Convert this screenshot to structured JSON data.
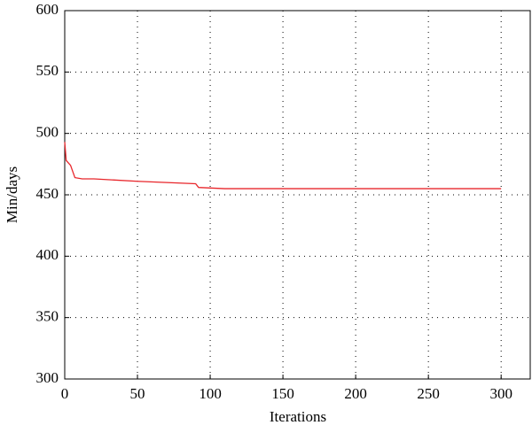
{
  "chart_data": {
    "type": "line",
    "x_label": "Iterations",
    "y_label": "Min/days",
    "x": [
      0,
      1,
      4,
      7,
      12,
      20,
      50,
      90,
      92,
      110,
      300
    ],
    "values": [
      493,
      478,
      474,
      464,
      463,
      463,
      461,
      459,
      456,
      455,
      455
    ],
    "color": "#e8262b",
    "xlim": [
      0,
      320
    ],
    "xticks": [
      0,
      50,
      100,
      150,
      200,
      250,
      300
    ],
    "ylim": [
      300,
      600
    ],
    "yticks": [
      300,
      350,
      400,
      450,
      500,
      550,
      600
    ],
    "grid": true
  }
}
